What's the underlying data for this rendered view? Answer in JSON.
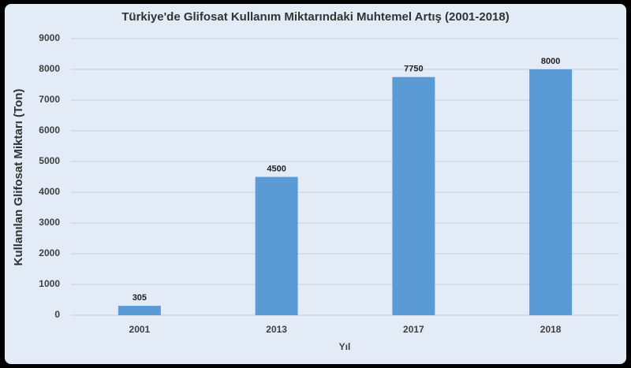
{
  "chart_data": {
    "type": "bar",
    "title": "Türkiye'de Glifosat Kullanım Miktarındaki Muhtemel Artış (2001-2018)",
    "x_label": "Yıl",
    "y_label": "Kullanılan Glifosat Miktarı (Ton)",
    "categories": [
      "2001",
      "2013",
      "2017",
      "2018"
    ],
    "values": [
      305,
      4500,
      7750,
      8000
    ],
    "color": "#5b9bd5",
    "ylim": [
      0,
      9000
    ],
    "yticks": [
      0,
      1000,
      2000,
      3000,
      4000,
      5000,
      6000,
      7000,
      8000,
      9000
    ],
    "grid": true
  }
}
